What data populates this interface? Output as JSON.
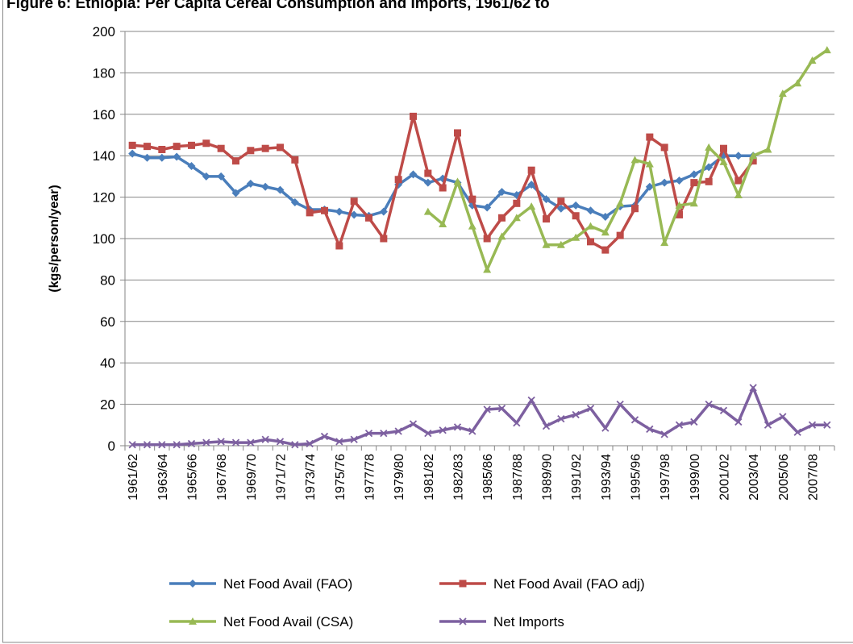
{
  "chart_data": {
    "type": "line",
    "title": "Figure 6: Ethiopia: Per Capita Cereal Consumption and Imports, 1961/62 to",
    "y_label": "(kgs/person/year)",
    "categories": [
      "1961/62",
      null,
      "1963/64",
      null,
      "1965/66",
      null,
      "1967/68",
      null,
      "1969/70",
      null,
      "1971/72",
      null,
      "1973/74",
      null,
      "1975/76",
      null,
      "1977/78",
      null,
      "1979/80",
      null,
      "1981/82",
      null,
      "1982/83",
      null,
      "1985/86",
      null,
      "1987/88",
      null,
      "1989/90",
      null,
      "1991/92",
      null,
      "1993/94",
      null,
      "1995/96",
      null,
      "1997/98",
      null,
      "1999/00",
      null,
      "2001/02",
      null,
      "2003/04",
      null,
      "2005/06",
      null,
      "2007/08",
      null
    ],
    "series": [
      {
        "name": "Net Food Avail (FAO)",
        "color": "#4a7ebb",
        "marker": "diamond",
        "values": [
          141,
          139,
          139,
          139.5,
          135,
          130,
          130,
          122,
          126.5,
          125,
          123.5,
          117.5,
          114,
          114,
          113,
          111.5,
          111,
          113,
          126,
          131,
          127,
          129,
          127,
          116,
          115,
          122.5,
          121,
          126,
          119,
          114.5,
          116,
          113.5,
          110.5,
          115.5,
          116,
          125,
          127,
          128,
          131,
          134.5,
          140,
          140,
          140,
          null,
          null,
          null,
          null,
          null
        ]
      },
      {
        "name": "Net Food Avail (FAO adj)",
        "color": "#be4b48",
        "marker": "square",
        "values": [
          145,
          144.5,
          143,
          144.5,
          145,
          146,
          143.5,
          137.5,
          142.5,
          143.5,
          144,
          138,
          112.5,
          113.5,
          96.5,
          118,
          110,
          100,
          128.5,
          159,
          131.5,
          124.5,
          151,
          119,
          100,
          110,
          117,
          133,
          109.5,
          118,
          111,
          98.5,
          94.5,
          101.5,
          114.5,
          149,
          144,
          111.5,
          127,
          127.5,
          143.5,
          128,
          137.5,
          null,
          null,
          null,
          null,
          null
        ]
      },
      {
        "name": "Net Food Avail (CSA)",
        "color": "#98b954",
        "marker": "triangle",
        "values": [
          null,
          null,
          null,
          null,
          null,
          null,
          null,
          null,
          null,
          null,
          null,
          null,
          null,
          null,
          null,
          null,
          null,
          null,
          null,
          null,
          113,
          107,
          127.5,
          106,
          85,
          101,
          110,
          115.5,
          97,
          97,
          100.5,
          106,
          103,
          117,
          138,
          136,
          98,
          116,
          117,
          144,
          137,
          121,
          140,
          143,
          170,
          175,
          186,
          191
        ]
      },
      {
        "name": "Net Imports",
        "color": "#7d60a0",
        "marker": "x",
        "values": [
          0.5,
          0.5,
          0.5,
          0.5,
          1,
          1.5,
          2,
          1.5,
          1.5,
          3,
          2,
          0.5,
          1,
          4.5,
          2,
          3,
          6,
          6,
          7,
          10.5,
          6,
          7.5,
          9,
          7,
          17.5,
          18,
          11,
          22,
          9.5,
          13,
          15,
          18,
          8.5,
          20,
          12.5,
          8,
          5.5,
          10,
          11.5,
          20,
          17,
          11.5,
          28,
          10,
          14,
          6.5,
          10,
          10
        ]
      }
    ],
    "ylim": [
      0,
      200
    ],
    "yticks": [
      0,
      20,
      40,
      60,
      80,
      100,
      120,
      140,
      160,
      180,
      200
    ],
    "grid": true
  }
}
